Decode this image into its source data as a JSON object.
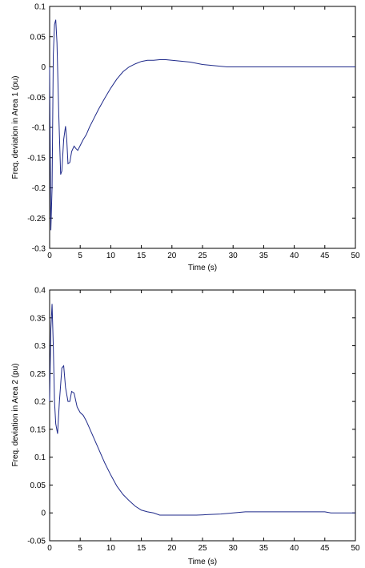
{
  "chart_data": [
    {
      "type": "line",
      "title": "",
      "xlabel": "Time (s)",
      "ylabel": "Freq. deviation in Area 1 (pu)",
      "xlim": [
        0,
        50
      ],
      "ylim": [
        -0.3,
        0.1
      ],
      "xticks": [
        "0",
        "5",
        "10",
        "15",
        "20",
        "25",
        "30",
        "35",
        "40",
        "45",
        "50"
      ],
      "yticks": [
        "0.1",
        "0.05",
        "0",
        "-0.05",
        "-0.1",
        "-0.15",
        "-0.2",
        "-0.25",
        "-0.3"
      ],
      "grid": false,
      "line_color": "#1f2a8a",
      "series": [
        {
          "x": [
            0,
            0.2,
            0.4,
            0.6,
            0.8,
            1.0,
            1.2,
            1.5,
            1.8,
            2.0,
            2.3,
            2.6,
            2.8,
            3.0,
            3.3,
            3.6,
            4.0,
            4.3,
            4.6,
            5.0,
            5.5,
            6.0,
            6.5,
            7.0,
            8.0,
            9.0,
            10.0,
            11.0,
            12.0,
            13.0,
            14.0,
            15.0,
            16.0,
            17.0,
            18.0,
            19.0,
            20.0,
            21.0,
            22.0,
            23.0,
            24.0,
            25.0,
            26.0,
            27.0,
            28.0,
            29.0,
            30.0,
            35.0,
            40.0,
            45.0,
            50.0
          ],
          "y": [
            0,
            -0.27,
            -0.2,
            0.02,
            0.07,
            0.078,
            0.04,
            -0.08,
            -0.178,
            -0.172,
            -0.12,
            -0.098,
            -0.12,
            -0.16,
            -0.158,
            -0.14,
            -0.131,
            -0.135,
            -0.138,
            -0.13,
            -0.12,
            -0.112,
            -0.1,
            -0.09,
            -0.07,
            -0.052,
            -0.035,
            -0.02,
            -0.008,
            0.0,
            0.005,
            0.009,
            0.011,
            0.011,
            0.012,
            0.012,
            0.011,
            0.01,
            0.009,
            0.008,
            0.006,
            0.004,
            0.003,
            0.002,
            0.001,
            0.0,
            0.0,
            0.0,
            0.0,
            0.0,
            0.0
          ]
        }
      ]
    },
    {
      "type": "line",
      "title": "",
      "xlabel": "Time (s)",
      "ylabel": "Freq. deviation in Area 2 (pu)",
      "xlim": [
        0,
        50
      ],
      "ylim": [
        -0.05,
        0.4
      ],
      "xticks": [
        "0",
        "5",
        "10",
        "15",
        "20",
        "25",
        "30",
        "35",
        "40",
        "45",
        "50"
      ],
      "yticks": [
        "0.4",
        "0.35",
        "0.3",
        "0.25",
        "0.2",
        "0.15",
        "0.1",
        "0.05",
        "0",
        "-0.05"
      ],
      "grid": false,
      "line_color": "#1f2a8a",
      "series": [
        {
          "x": [
            0,
            0.2,
            0.4,
            0.6,
            0.8,
            1.0,
            1.3,
            1.6,
            2.0,
            2.3,
            2.6,
            3.0,
            3.3,
            3.6,
            4.0,
            4.5,
            5.0,
            5.5,
            6.0,
            7.0,
            8.0,
            9.0,
            10.0,
            11.0,
            12.0,
            13.0,
            14.0,
            15.0,
            16.0,
            17.0,
            18.0,
            19.0,
            20.0,
            22.0,
            24.0,
            26.0,
            28.0,
            30.0,
            32.0,
            35.0,
            40.0,
            45.0,
            46.0,
            50.0
          ],
          "y": [
            0.2,
            0.33,
            0.375,
            0.3,
            0.2,
            0.16,
            0.142,
            0.2,
            0.26,
            0.264,
            0.225,
            0.2,
            0.2,
            0.218,
            0.215,
            0.19,
            0.18,
            0.175,
            0.165,
            0.14,
            0.115,
            0.09,
            0.068,
            0.048,
            0.033,
            0.022,
            0.012,
            0.005,
            0.002,
            0.0,
            -0.004,
            -0.004,
            -0.004,
            -0.004,
            -0.004,
            -0.003,
            -0.002,
            0.0,
            0.002,
            0.002,
            0.002,
            0.002,
            0.0,
            0.0
          ]
        }
      ]
    }
  ]
}
